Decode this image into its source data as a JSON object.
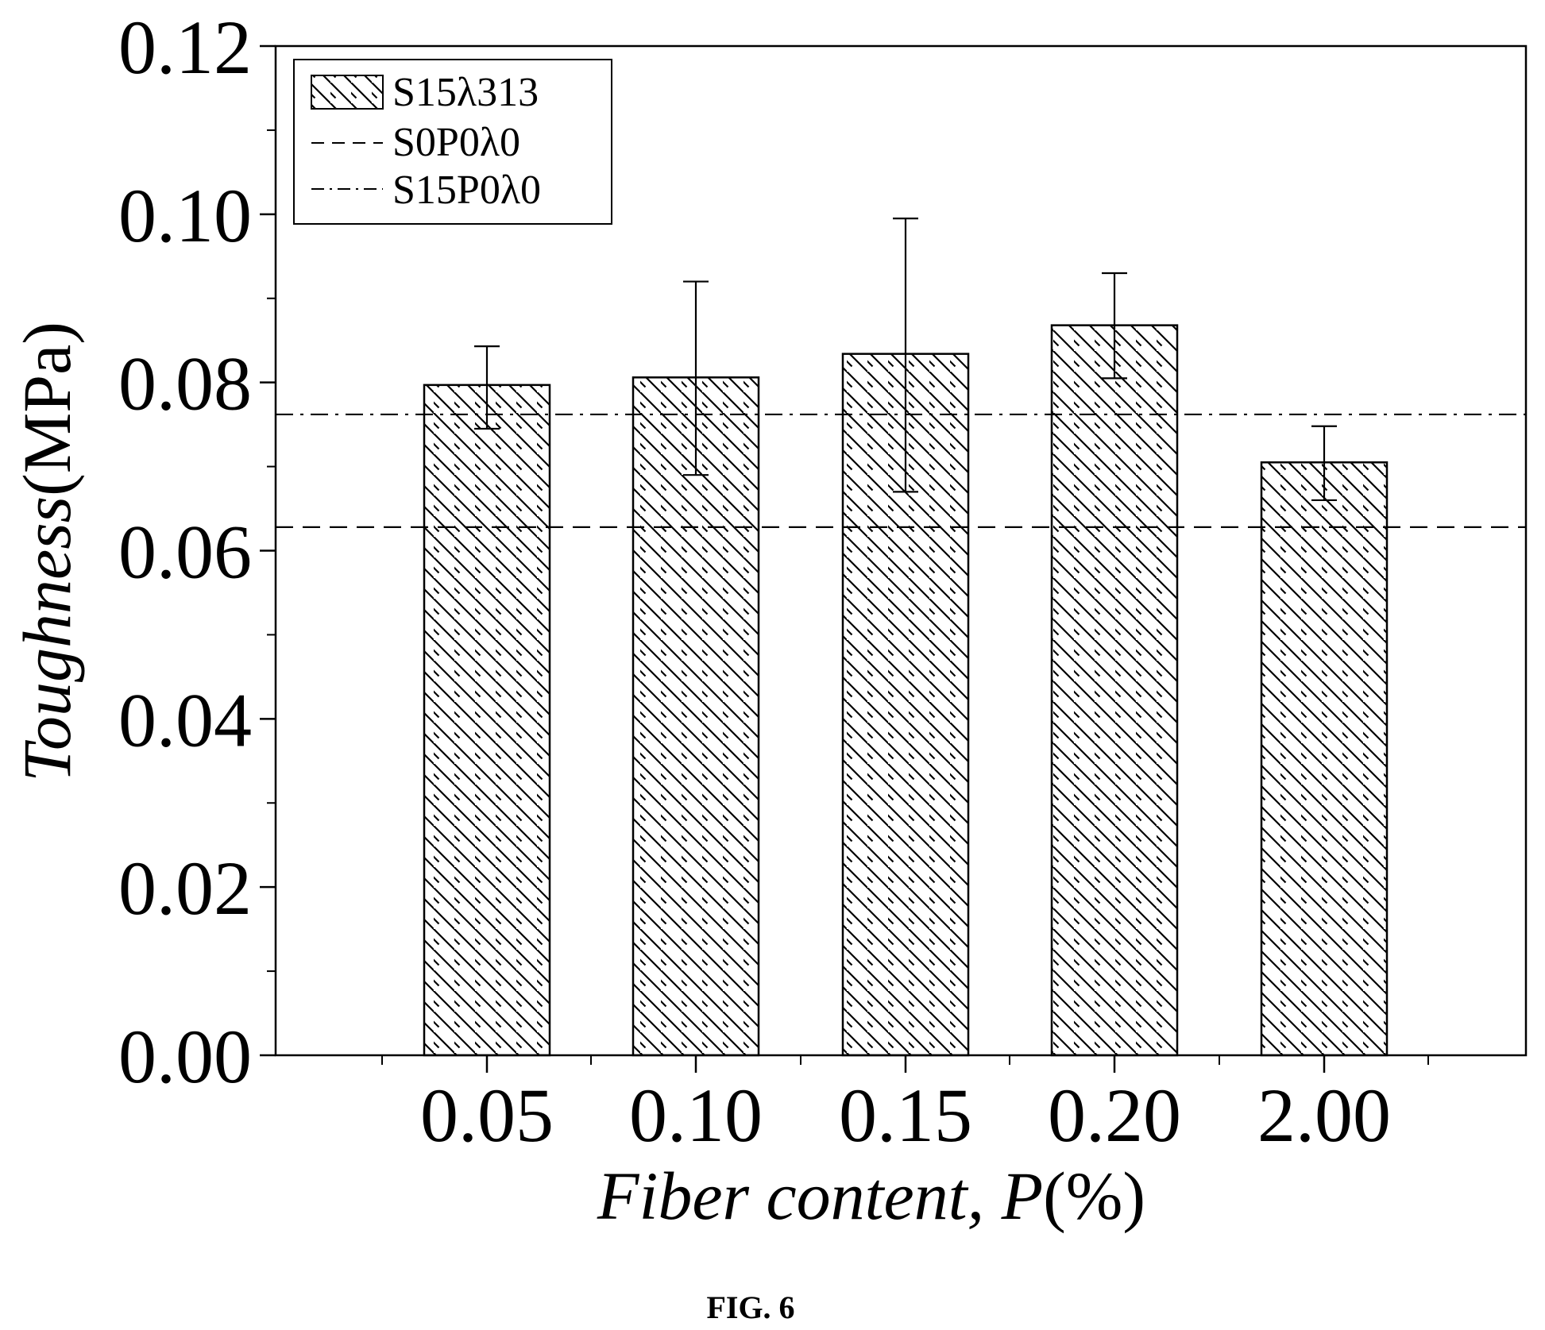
{
  "chart_data": {
    "type": "bar",
    "categories": [
      "0.05",
      "0.10",
      "0.15",
      "0.20",
      "2.00"
    ],
    "series": [
      {
        "name": "S15λ313",
        "values": [
          0.0797,
          0.0806,
          0.0834,
          0.0868,
          0.0705
        ],
        "error": [
          [
            0.0745,
            0.0843
          ],
          [
            0.069,
            0.092
          ],
          [
            0.067,
            0.0995
          ],
          [
            0.0805,
            0.093
          ],
          [
            0.066,
            0.0748
          ]
        ],
        "pattern": "diagonal-hatch"
      }
    ],
    "reference_lines": [
      {
        "name": "S0P0λ0",
        "value": 0.0628,
        "style": "dashed"
      },
      {
        "name": "S15P0λ0",
        "value": 0.0762,
        "style": "dash-dot"
      }
    ],
    "yticks": [
      "0.00",
      "0.02",
      "0.04",
      "0.06",
      "0.08",
      "0.10",
      "0.12"
    ],
    "ylim": [
      0,
      0.12
    ],
    "xlabel_main": "Fiber content, P",
    "xlabel_unit": "(%)",
    "ylabel_main": "Toughness",
    "ylabel_unit": "(MPa)",
    "legend_position": "top-left",
    "grid": false
  },
  "caption": "FIG. 6",
  "colors": {
    "ink": "#000000",
    "background": "#ffffff"
  }
}
